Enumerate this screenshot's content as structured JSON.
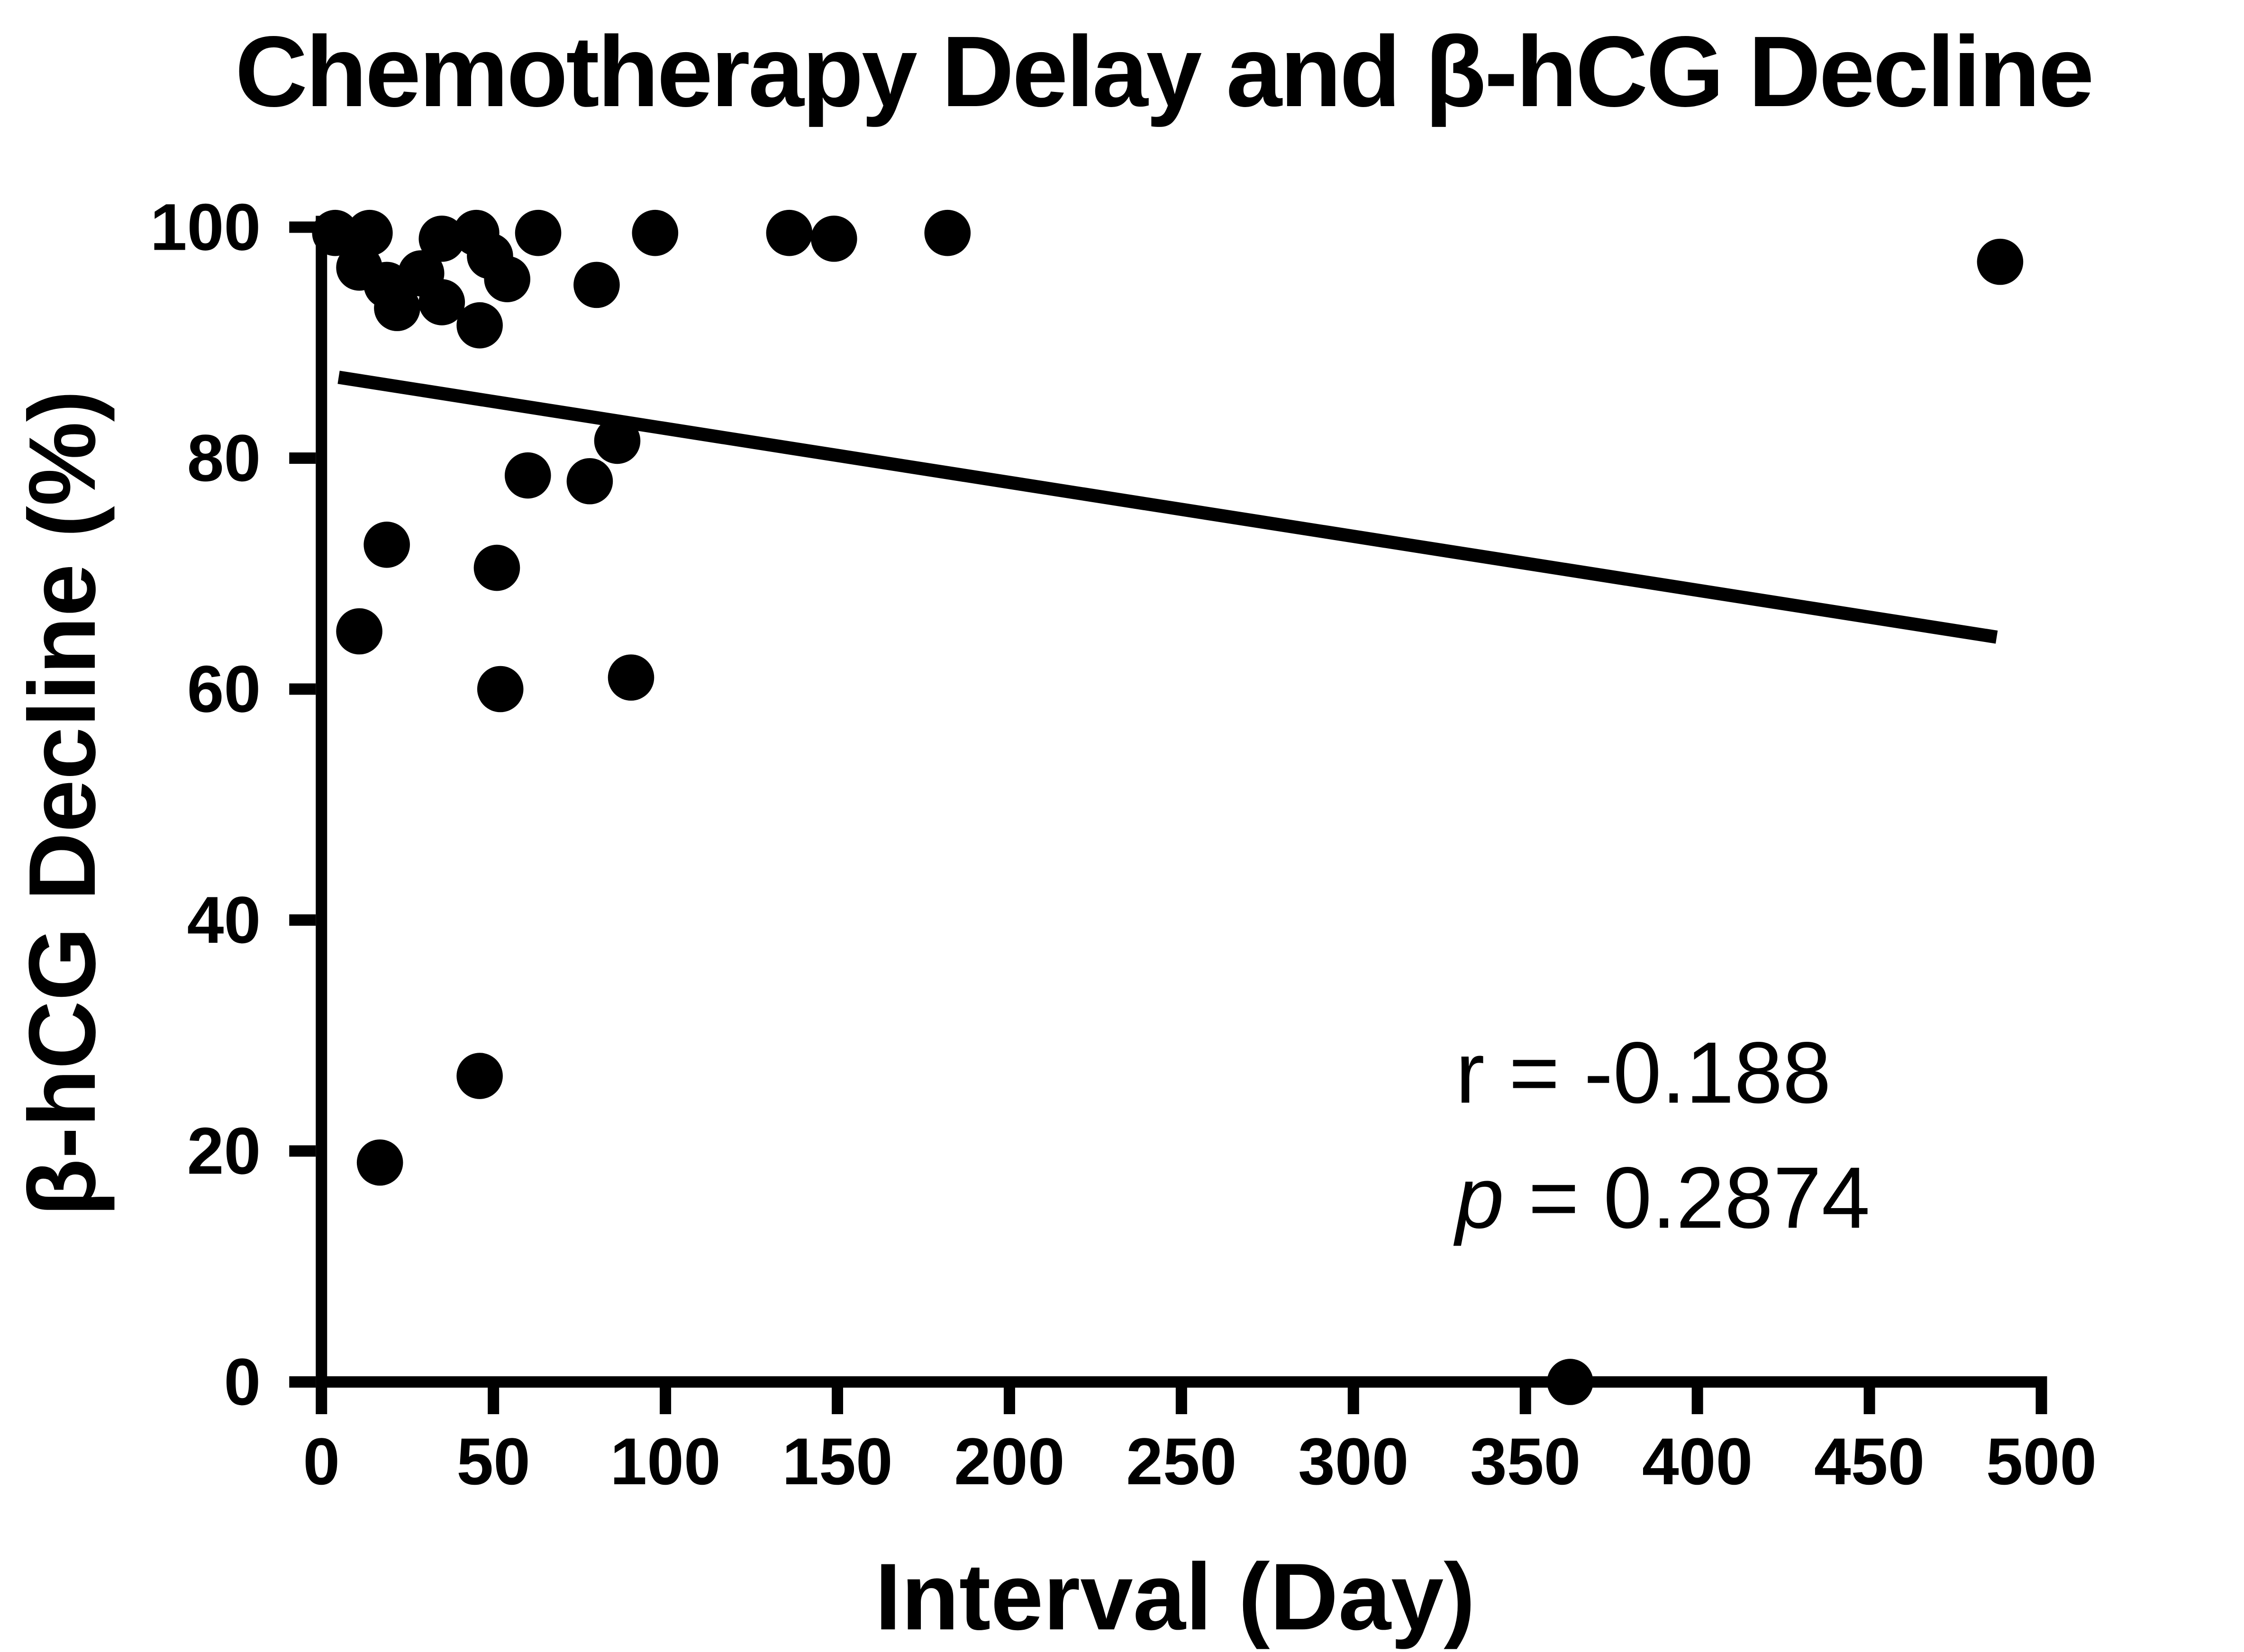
{
  "chart_data": {
    "type": "scatter",
    "title": "Chemotherapy Delay and β-hCG Decline",
    "xlabel": "Interval (Day)",
    "ylabel": "β-hCG Decline (%)",
    "xlim": [
      0,
      500
    ],
    "ylim": [
      0,
      100
    ],
    "xticks": [
      0,
      50,
      100,
      150,
      200,
      250,
      300,
      350,
      400,
      450,
      500
    ],
    "yticks": [
      0,
      20,
      40,
      60,
      80,
      100
    ],
    "grid": false,
    "legend": "none",
    "marker": "filled-circle",
    "marker_color": "#000000",
    "line_color": "#000000",
    "background_color": "#ffffff",
    "points": [
      {
        "x": 4,
        "y": 99.5
      },
      {
        "x": 14,
        "y": 99.5
      },
      {
        "x": 35,
        "y": 99
      },
      {
        "x": 45,
        "y": 99.5
      },
      {
        "x": 63,
        "y": 99.5
      },
      {
        "x": 97,
        "y": 99.5
      },
      {
        "x": 136,
        "y": 99.5
      },
      {
        "x": 149,
        "y": 99
      },
      {
        "x": 182,
        "y": 99.5
      },
      {
        "x": 11,
        "y": 96.5
      },
      {
        "x": 29,
        "y": 96
      },
      {
        "x": 49,
        "y": 97.5
      },
      {
        "x": 19,
        "y": 95
      },
      {
        "x": 54,
        "y": 95.5
      },
      {
        "x": 80,
        "y": 95
      },
      {
        "x": 22,
        "y": 93
      },
      {
        "x": 35,
        "y": 93.5
      },
      {
        "x": 46,
        "y": 91.5
      },
      {
        "x": 86,
        "y": 81.5
      },
      {
        "x": 60,
        "y": 78.5
      },
      {
        "x": 78,
        "y": 78
      },
      {
        "x": 19,
        "y": 72.5
      },
      {
        "x": 51,
        "y": 70.5
      },
      {
        "x": 11,
        "y": 65
      },
      {
        "x": 52,
        "y": 60
      },
      {
        "x": 90,
        "y": 61
      },
      {
        "x": 46,
        "y": 26.5
      },
      {
        "x": 17,
        "y": 19
      },
      {
        "x": 363,
        "y": 0
      },
      {
        "x": 488,
        "y": 97
      }
    ],
    "regression_line": {
      "x1": 5,
      "y1": 87.0,
      "x2": 487,
      "y2": 64.5
    },
    "annotation": {
      "r_symbol": "r",
      "r_value": " = -0.188",
      "p_symbol": "p",
      "p_value": " = 0.2874"
    }
  }
}
